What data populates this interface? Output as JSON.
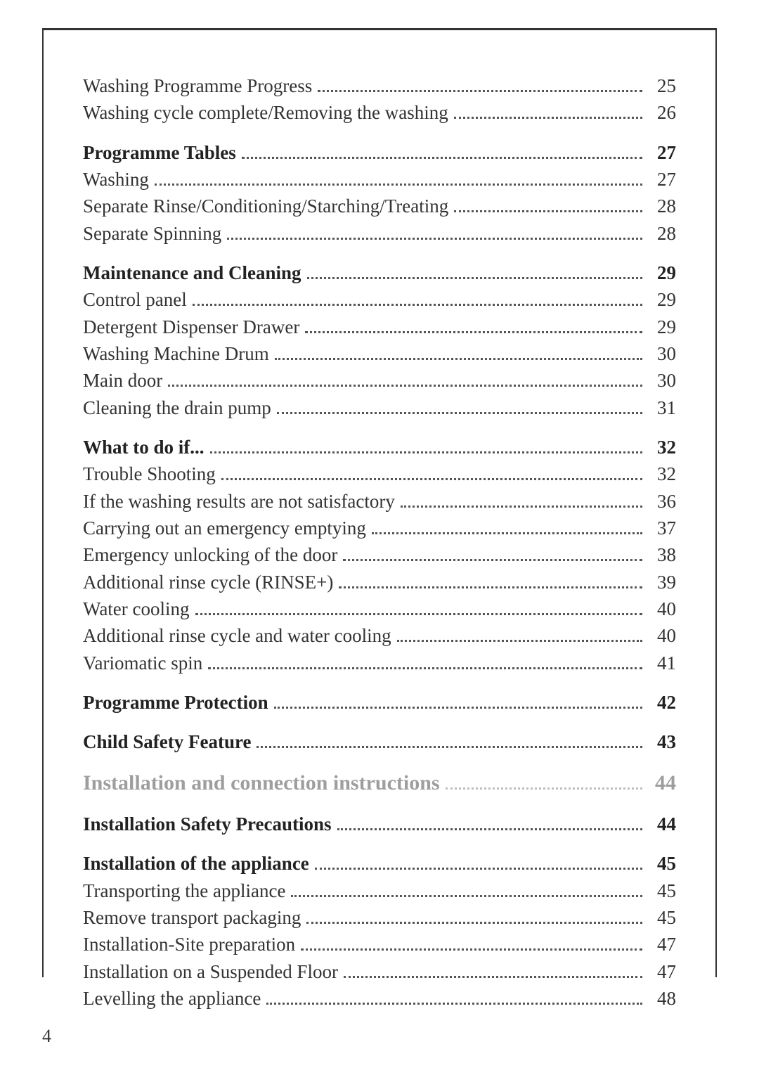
{
  "page": {
    "number": "4",
    "background_color": "#ffffff",
    "frame_border_color": "#333333",
    "text_color": "#333333",
    "muted_color": "#9e9e9e",
    "font_family": "serif",
    "body_fontsize_pt": 20,
    "section_fontsize_pt": 22
  },
  "toc": [
    {
      "entries": [
        {
          "label": "Washing Programme Progress",
          "page": "25",
          "bold": false
        },
        {
          "label": "Washing cycle complete/Removing the washing",
          "page": "26",
          "bold": false
        }
      ]
    },
    {
      "entries": [
        {
          "label": "Programme Tables",
          "page": "27",
          "bold": true
        },
        {
          "label": "Washing",
          "page": "27",
          "bold": false
        },
        {
          "label": "Separate Rinse/Conditioning/Starching/Treating",
          "page": "28",
          "bold": false
        },
        {
          "label": "Separate Spinning",
          "page": "28",
          "bold": false
        }
      ]
    },
    {
      "entries": [
        {
          "label": "Maintenance and Cleaning",
          "page": "29",
          "bold": true
        },
        {
          "label": "Control panel",
          "page": "29",
          "bold": false
        },
        {
          "label": "Detergent Dispenser Drawer",
          "page": "29",
          "bold": false
        },
        {
          "label": "Washing Machine Drum",
          "page": "30",
          "bold": false
        },
        {
          "label": "Main door",
          "page": "30",
          "bold": false
        },
        {
          "label": "Cleaning the drain pump",
          "page": "31",
          "bold": false
        }
      ]
    },
    {
      "entries": [
        {
          "label": "What to do if...",
          "page": "32",
          "bold": true
        },
        {
          "label": "Trouble Shooting",
          "page": "32",
          "bold": false
        },
        {
          "label": "If the washing results are not satisfactory",
          "page": "36",
          "bold": false
        },
        {
          "label": "Carrying out an emergency emptying",
          "page": "37",
          "bold": false
        },
        {
          "label": "Emergency unlocking of the door",
          "page": "38",
          "bold": false
        },
        {
          "label": "Additional rinse cycle (RINSE+)",
          "page": "39",
          "bold": false
        },
        {
          "label": "Water cooling",
          "page": "40",
          "bold": false
        },
        {
          "label": "Additional rinse cycle and water cooling",
          "page": "40",
          "bold": false
        },
        {
          "label": "Variomatic spin",
          "page": "41",
          "bold": false
        }
      ]
    },
    {
      "entries": [
        {
          "label": "Programme Protection",
          "page": "42",
          "bold": true
        }
      ]
    },
    {
      "entries": [
        {
          "label": "Child Safety Feature",
          "page": "43",
          "bold": true
        }
      ]
    },
    {
      "entries": [
        {
          "label": "Installation and connection instructions",
          "page": "44",
          "section": true
        }
      ]
    },
    {
      "entries": [
        {
          "label": "Installation Safety Precautions",
          "page": "44",
          "bold": true
        }
      ]
    },
    {
      "entries": [
        {
          "label": "Installation of the appliance",
          "page": "45",
          "bold": true
        },
        {
          "label": "Transporting the appliance",
          "page": "45",
          "bold": false
        },
        {
          "label": "Remove transport packaging",
          "page": "45",
          "bold": false
        },
        {
          "label": "Installation-Site preparation",
          "page": "47",
          "bold": false
        },
        {
          "label": "Installation on a Suspended Floor",
          "page": "47",
          "bold": false
        },
        {
          "label": "Levelling the appliance",
          "page": "48",
          "bold": false
        }
      ]
    }
  ]
}
